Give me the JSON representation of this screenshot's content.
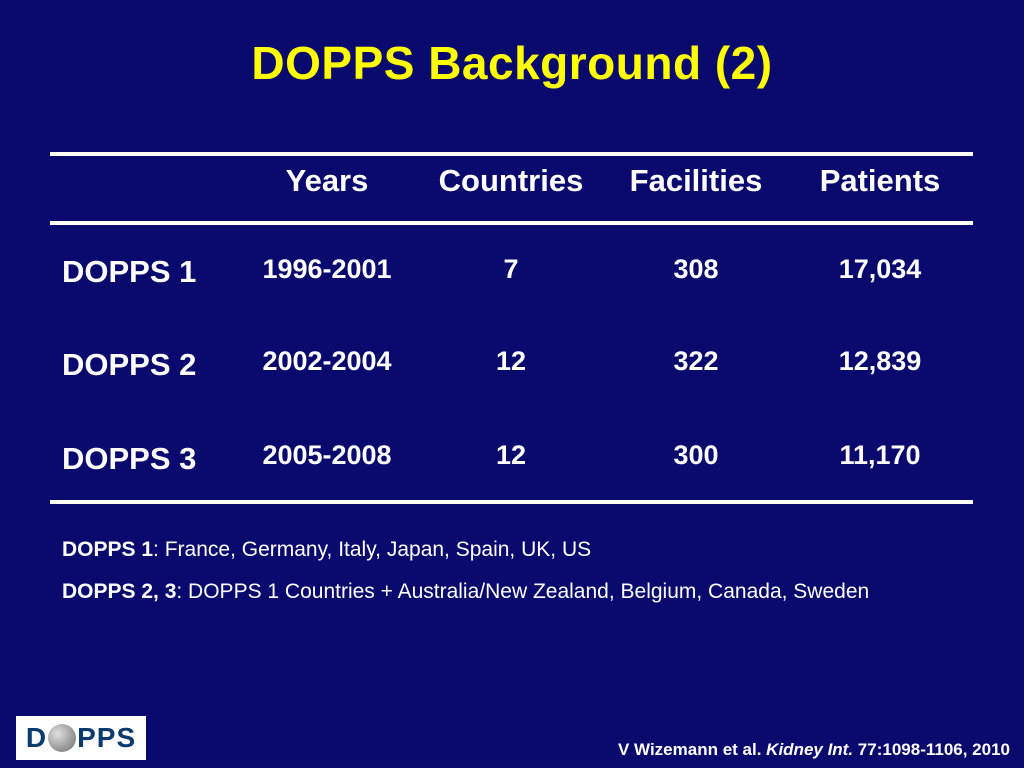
{
  "slide": {
    "title": "DOPPS Background (2)"
  },
  "table": {
    "headers": [
      "Years",
      "Countries",
      "Facilities",
      "Patients"
    ],
    "rows": [
      {
        "label": "DOPPS 1",
        "years": "1996-2001",
        "countries": "7",
        "facilities": "308",
        "patients": "17,034"
      },
      {
        "label": "DOPPS 2",
        "years": "2002-2004",
        "countries": "12",
        "facilities": "322",
        "patients": "12,839"
      },
      {
        "label": "DOPPS 3",
        "years": "2005-2008",
        "countries": "12",
        "facilities": "300",
        "patients": "11,170"
      }
    ]
  },
  "notes": [
    {
      "bold": "DOPPS 1",
      "text": ": France, Germany, Italy, Japan, Spain, UK, US"
    },
    {
      "bold": "DOPPS 2, 3",
      "text": ": DOPPS 1 Countries + Australia/New Zealand, Belgium, Canada, Sweden"
    }
  ],
  "logo": {
    "text_left": "D",
    "text_right": "PPS",
    "icon": "globe-icon"
  },
  "citation": {
    "authors": "V Wizemann et al. ",
    "journal": "Kidney Int.",
    "ref": " 77:1098-1106, 2010"
  },
  "colors": {
    "background": "#0a0a6e",
    "title": "#ffff00",
    "text": "#ffffff"
  }
}
